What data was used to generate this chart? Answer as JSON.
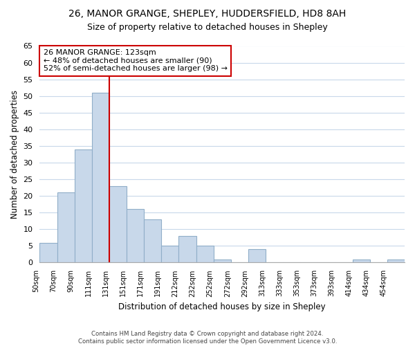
{
  "title1": "26, MANOR GRANGE, SHEPLEY, HUDDERSFIELD, HD8 8AH",
  "title2": "Size of property relative to detached houses in Shepley",
  "xlabel": "Distribution of detached houses by size in Shepley",
  "ylabel": "Number of detached properties",
  "bar_color": "#c8d8ea",
  "bar_edge_color": "#90aec8",
  "bin_labels": [
    "50sqm",
    "70sqm",
    "90sqm",
    "111sqm",
    "131sqm",
    "151sqm",
    "171sqm",
    "191sqm",
    "212sqm",
    "232sqm",
    "252sqm",
    "272sqm",
    "292sqm",
    "313sqm",
    "333sqm",
    "353sqm",
    "373sqm",
    "393sqm",
    "414sqm",
    "434sqm",
    "454sqm"
  ],
  "bar_heights": [
    6,
    21,
    34,
    51,
    23,
    16,
    13,
    5,
    8,
    5,
    1,
    0,
    4,
    0,
    0,
    0,
    0,
    0,
    1,
    0,
    1
  ],
  "ylim": [
    0,
    65
  ],
  "yticks": [
    0,
    5,
    10,
    15,
    20,
    25,
    30,
    35,
    40,
    45,
    50,
    55,
    60,
    65
  ],
  "annotation_line1": "26 MANOR GRANGE: 123sqm",
  "annotation_line2": "← 48% of detached houses are smaller (90)",
  "annotation_line3": "52% of semi-detached houses are larger (98) →",
  "vline_color": "#cc0000",
  "annotation_box_color": "#ffffff",
  "annotation_box_edge": "#cc0000",
  "footer1": "Contains HM Land Registry data © Crown copyright and database right 2024.",
  "footer2": "Contains public sector information licensed under the Open Government Licence v3.0.",
  "background_color": "#ffffff",
  "grid_color": "#c8d8ea"
}
